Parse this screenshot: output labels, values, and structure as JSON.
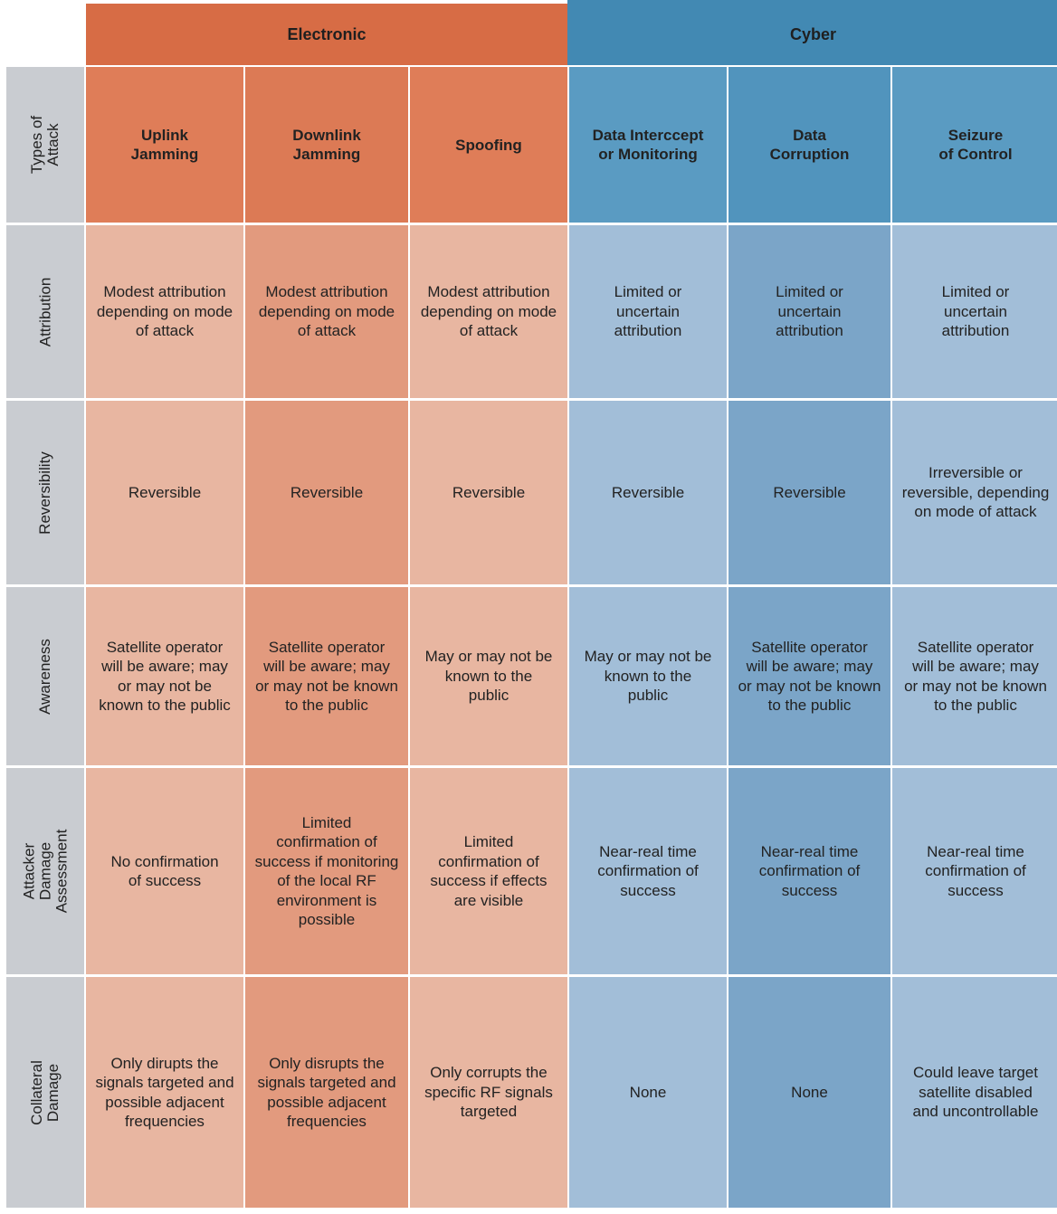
{
  "groups": {
    "electronic": "Electronic",
    "cyber": "Cyber"
  },
  "row_labels": {
    "types": "Types of Attack",
    "attribution": "Attribution",
    "reversibility": "Reversibility",
    "awareness": "Awareness",
    "assessment": "Attacker Damage\nAssessment",
    "collateral": "Collateral Damage"
  },
  "columns": [
    "Uplink\nJamming",
    "Downlink\nJamming",
    "Spoofing",
    "Data Interccept\nor Monitoring",
    "Data\nCorruption",
    "Seizure\nof Control"
  ],
  "attribution": [
    "Modest attribution\ndepending on mode\nof attack",
    "Modest attribution\ndepending on mode\nof attack",
    "Modest attribution\ndepending on mode\nof attack",
    "Limited or\nuncertain\nattribution",
    "Limited or\nuncertain\nattribution",
    "Limited or\nuncertain\nattribution"
  ],
  "reversibility": [
    "Reversible",
    "Reversible",
    "Reversible",
    "Reversible",
    "Reversible",
    "Irreversible or\nreversible, depending\non mode of attack"
  ],
  "awareness": [
    "Satellite operator\nwill be aware; may\nor may not be\nknown to the public",
    "Satellite operator\nwill be aware; may\nor may not be known\nto the public",
    "May or may not be\nknown to the\npublic",
    "May or may not be\nknown to the\npublic",
    "Satellite operator\nwill be aware; may\nor may not be known\nto the public",
    "Satellite operator\nwill be aware; may\nor may not be known\nto the public"
  ],
  "assessment": [
    "No confirmation\nof success",
    "Limited\nconfirmation of\nsuccess if monitoring\nof the local RF\nenvironment is\npossible",
    "Limited\nconfirmation of\nsuccess if effects\nare visible",
    "Near-real time\nconfirmation of\nsuccess",
    "Near-real time\nconfirmation of\nsuccess",
    "Near-real time\nconfirmation of\nsuccess"
  ],
  "collateral": [
    "Only dirupts the\nsignals targeted and\npossible adjacent\nfrequencies",
    "Only disrupts the\nsignals targeted and\npossible adjacent\nfrequencies",
    "Only corrupts the\nspecific RF signals\ntargeted",
    "None",
    "None",
    "Could leave target\nsatellite disabled\nand uncontrollable"
  ]
}
